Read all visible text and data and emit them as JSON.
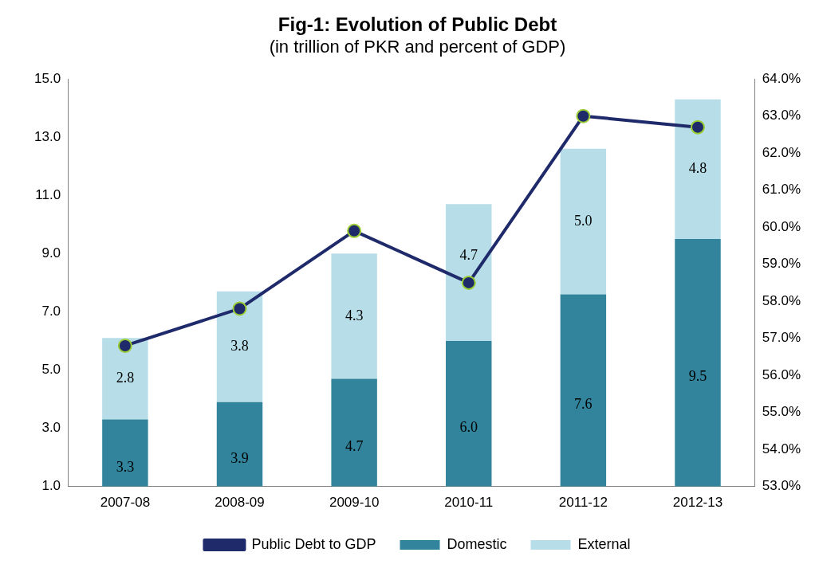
{
  "chart_data": {
    "type": "bar",
    "title": "Fig-1: Evolution of Public Debt",
    "subtitle": "(in trillion of PKR and percent of GDP)",
    "categories": [
      "2007-08",
      "2008-09",
      "2009-10",
      "2010-11",
      "2011-12",
      "2012-13"
    ],
    "stacked": true,
    "legend": "bottom",
    "grid": false,
    "marker": "circle",
    "line_style": "solid",
    "series": [
      {
        "name": "Domestic",
        "color": "#31849b",
        "values": [
          3.3,
          3.9,
          4.7,
          6.0,
          7.6,
          9.5
        ],
        "value_labels": [
          "3.3",
          "3.9",
          "4.7",
          "6.0",
          "7.6",
          "9.5"
        ]
      },
      {
        "name": "External",
        "color": "#b7dee8",
        "values": [
          2.8,
          3.8,
          4.3,
          4.7,
          5.0,
          4.8
        ],
        "value_labels": [
          "2.8",
          "3.8",
          "4.3",
          "4.7",
          "5.0",
          "4.8"
        ]
      },
      {
        "name": "Public Debt to GDP",
        "type": "line",
        "axis": "y2",
        "color": "#1f2a6b",
        "values": [
          56.8,
          57.8,
          59.9,
          58.5,
          63.0,
          62.7
        ]
      }
    ],
    "ylim": [
      1,
      15
    ],
    "yticks": [
      {
        "value": 1,
        "label": "1.0"
      },
      {
        "value": 3,
        "label": "3.0"
      },
      {
        "value": 5,
        "label": "5.0"
      },
      {
        "value": 7,
        "label": "7.0"
      },
      {
        "value": 9,
        "label": "9.0"
      },
      {
        "value": 11,
        "label": "11.0"
      },
      {
        "value": 13,
        "label": "13.0"
      },
      {
        "value": 15,
        "label": "15.0"
      }
    ],
    "y2lim": [
      53,
      64
    ],
    "y2ticks": [
      {
        "value": 53,
        "label": "53.0%"
      },
      {
        "value": 54,
        "label": "54.0%"
      },
      {
        "value": 55,
        "label": "55.0%"
      },
      {
        "value": 56,
        "label": "56.0%"
      },
      {
        "value": 57,
        "label": "57.0%"
      },
      {
        "value": 58,
        "label": "58.0%"
      },
      {
        "value": 59,
        "label": "59.0%"
      },
      {
        "value": 60,
        "label": "60.0%"
      },
      {
        "value": 61,
        "label": "61.0%"
      },
      {
        "value": 62,
        "label": "62.0%"
      },
      {
        "value": 63,
        "label": "63.0%"
      },
      {
        "value": 64,
        "label": "64.0%"
      }
    ]
  }
}
